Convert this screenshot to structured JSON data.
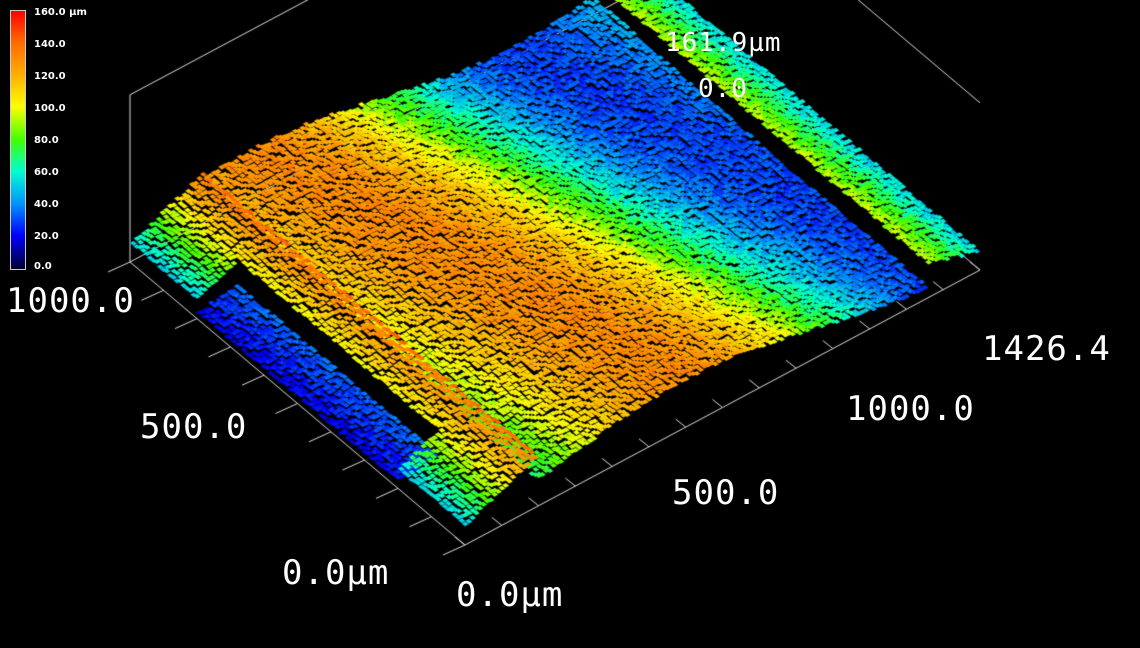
{
  "legend": {
    "ticks": [
      "160.0 µm",
      "140.0",
      "120.0",
      "100.0",
      "80.0",
      "60.0",
      "40.0",
      "20.0",
      "0.0"
    ],
    "colors": [
      "#ff0000",
      "#ff6a00",
      "#ffb000",
      "#ffff00",
      "#40ff00",
      "#00ffd0",
      "#0090ff",
      "#0000ff",
      "#000030"
    ]
  },
  "axes": {
    "z_max": "161.9µm",
    "z_top_right": "0.0",
    "y_far": "1000.0",
    "y_mid": "500.0",
    "y_origin": "0.0µm",
    "x_origin": "0.0µm",
    "x_mid": "500.0",
    "x_1000": "1000.0",
    "x_max": "1426.4"
  },
  "surface": {
    "z_range_um": [
      0,
      161.9
    ],
    "x_range_um": [
      0,
      1426.4
    ],
    "y_range_um": [
      0,
      1000
    ],
    "background": "#000000"
  }
}
